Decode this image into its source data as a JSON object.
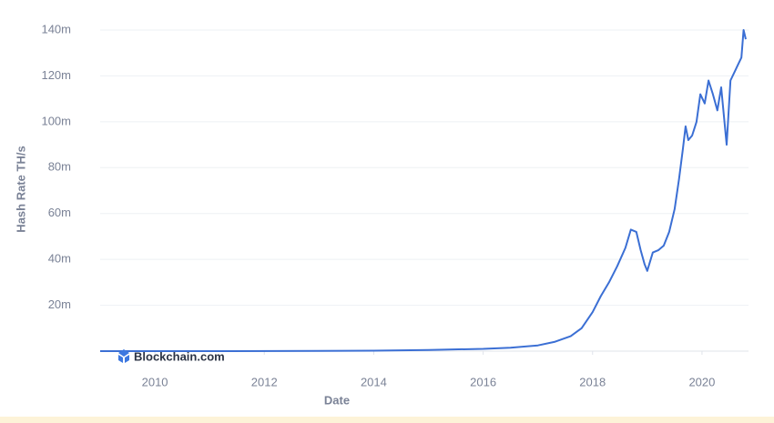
{
  "chart_data": {
    "type": "line",
    "y_label": "Hash Rate TH/s",
    "x_label": "Date",
    "watermark": "Blockchain.com",
    "xlim": [
      2009,
      2020.85
    ],
    "xticks": [
      2010,
      2012,
      2014,
      2016,
      2018,
      2020
    ],
    "ylim": [
      0,
      140000000
    ],
    "yticks": [
      {
        "value": 20000000,
        "label": "20m"
      },
      {
        "value": 40000000,
        "label": "40m"
      },
      {
        "value": 60000000,
        "label": "60m"
      },
      {
        "value": 80000000,
        "label": "80m"
      },
      {
        "value": 100000000,
        "label": "100m"
      },
      {
        "value": 120000000,
        "label": "120m"
      },
      {
        "value": 140000000,
        "label": "140m"
      }
    ],
    "grid": true,
    "series": [
      {
        "color": "#3b6fd4",
        "x": [
          2009,
          2011,
          2013,
          2014,
          2015,
          2016,
          2016.5,
          2017,
          2017.3,
          2017.6,
          2017.8,
          2018,
          2018.15,
          2018.3,
          2018.45,
          2018.6,
          2018.7,
          2018.8,
          2018.88,
          2018.95,
          2019,
          2019.1,
          2019.2,
          2019.3,
          2019.4,
          2019.5,
          2019.58,
          2019.65,
          2019.7,
          2019.75,
          2019.82,
          2019.9,
          2019.97,
          2020.05,
          2020.12,
          2020.2,
          2020.28,
          2020.35,
          2020.45,
          2020.52,
          2020.6,
          2020.66,
          2020.72,
          2020.76,
          2020.8
        ],
        "values": [
          0,
          0,
          100000,
          200000,
          500000,
          1000000,
          1500000,
          2500000,
          4000000,
          6500000,
          10000000,
          17000000,
          24000000,
          30000000,
          37000000,
          45000000,
          53000000,
          52000000,
          44000000,
          38000000,
          35000000,
          43000000,
          44000000,
          46000000,
          52000000,
          62000000,
          75000000,
          88000000,
          98000000,
          92000000,
          94000000,
          100000000,
          112000000,
          108000000,
          118000000,
          112000000,
          105000000,
          115000000,
          90000000,
          118000000,
          122000000,
          125000000,
          128000000,
          140000000,
          136000000
        ]
      }
    ]
  }
}
